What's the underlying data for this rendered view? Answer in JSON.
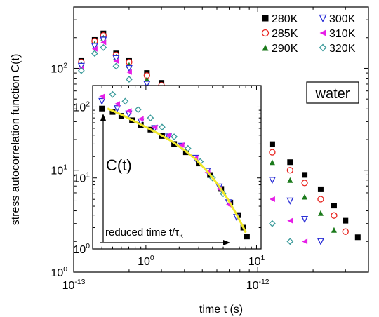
{
  "chart_data": [
    {
      "type": "scatter",
      "xlabel": "time t (s)",
      "ylabel": "stress autocorrelation function C(t)",
      "x_scale": "log",
      "y_scale": "log",
      "xlim": [
        1e-13,
        4e-12
      ],
      "ylim": [
        1,
        400
      ],
      "x_tick_labels": [
        {
          "value": 1e-13,
          "base": "10",
          "exp": "-13"
        },
        {
          "value": 1e-12,
          "base": "10",
          "exp": "-12"
        }
      ],
      "y_tick_labels": [
        {
          "value": 1,
          "base": "10",
          "exp": "0"
        },
        {
          "value": 10,
          "base": "10",
          "exp": "1"
        },
        {
          "value": 100,
          "base": "10",
          "exp": "2"
        }
      ],
      "annotation": "water",
      "legend_position": "top-right",
      "series": [
        {
          "name": "280K",
          "marker": "square-filled",
          "color": "#000000",
          "x": [
            1.1e-13,
            1.3e-13,
            1.45e-13,
            1.7e-13,
            2e-13,
            2.5e-13,
            3e-13,
            4e-13,
            5e-13,
            6e-13,
            7e-13,
            8e-13,
            1e-12,
            1.2e-12,
            1.5e-12,
            1.8e-12,
            2.2e-12,
            2.6e-12,
            3e-12,
            3.5e-12
          ],
          "y": [
            120,
            190,
            220,
            140,
            120,
            90,
            72,
            55,
            46,
            40,
            35,
            30,
            23,
            18,
            12,
            9,
            6.5,
            4.5,
            3.2,
            2.2
          ]
        },
        {
          "name": "285K",
          "marker": "circle-open",
          "color": "#e8241f",
          "x": [
            1.1e-13,
            1.3e-13,
            1.45e-13,
            1.7e-13,
            2e-13,
            2.5e-13,
            3e-13,
            4e-13,
            5e-13,
            6e-13,
            7e-13,
            8e-13,
            1e-12,
            1.2e-12,
            1.5e-12,
            1.8e-12,
            2.2e-12,
            2.6e-12,
            3e-12
          ],
          "y": [
            115,
            185,
            210,
            135,
            115,
            85,
            68,
            52,
            43,
            37,
            32,
            27,
            20,
            15,
            10,
            7.5,
            5.2,
            3.6,
            2.5
          ]
        },
        {
          "name": "290K",
          "marker": "triangle-up-filled",
          "color": "#1b7a1b",
          "x": [
            1.1e-13,
            1.3e-13,
            1.45e-13,
            1.7e-13,
            2e-13,
            2.5e-13,
            3e-13,
            4e-13,
            5e-13,
            6e-13,
            7e-13,
            8e-13,
            1e-12,
            1.2e-12,
            1.5e-12,
            1.8e-12,
            2.2e-12,
            2.6e-12
          ],
          "y": [
            110,
            175,
            200,
            130,
            108,
            78,
            60,
            46,
            37,
            31,
            26,
            22,
            16,
            12,
            8,
            5.5,
            3.8,
            2.6
          ]
        },
        {
          "name": "300K",
          "marker": "triangle-down-open",
          "color": "#2b2fd6",
          "x": [
            1.1e-13,
            1.3e-13,
            1.45e-13,
            1.7e-13,
            2e-13,
            2.5e-13,
            3e-13,
            4e-13,
            5e-13,
            6e-13,
            7e-13,
            8e-13,
            1e-12,
            1.2e-12,
            1.5e-12,
            1.8e-12,
            2.2e-12
          ],
          "y": [
            105,
            165,
            190,
            125,
            100,
            70,
            52,
            38,
            30,
            24,
            19,
            15.5,
            11,
            8,
            5,
            3.3,
            2
          ]
        },
        {
          "name": "310K",
          "marker": "triangle-left-filled",
          "color": "#e61ee6",
          "x": [
            1.1e-13,
            1.3e-13,
            1.45e-13,
            1.7e-13,
            2e-13,
            2.5e-13,
            3e-13,
            4e-13,
            5e-13,
            6e-13,
            7e-13,
            8e-13,
            1e-12,
            1.2e-12,
            1.5e-12,
            1.8e-12
          ],
          "y": [
            100,
            155,
            180,
            118,
            92,
            62,
            44,
            31,
            23,
            18,
            14,
            11,
            7.5,
            5.2,
            3.2,
            2
          ]
        },
        {
          "name": "320K",
          "marker": "diamond-open",
          "color": "#3a9a9a",
          "x": [
            1.1e-13,
            1.3e-13,
            1.45e-13,
            1.7e-13,
            2e-13,
            2.5e-13,
            3e-13,
            4e-13,
            5e-13,
            6e-13,
            7e-13,
            8e-13,
            1e-12,
            1.2e-12,
            1.5e-12
          ],
          "y": [
            95,
            140,
            160,
            105,
            78,
            50,
            34,
            22,
            15,
            11,
            8.5,
            6.5,
            4.3,
            3,
            2
          ]
        }
      ]
    },
    {
      "type": "scatter",
      "xlabel_text": "reduced time t/",
      "xlabel_tau": "τ",
      "xlabel_sub": "K",
      "ylabel": "C(t)",
      "x_scale": "log",
      "y_scale": "log",
      "xlim": [
        0.33,
        11
      ],
      "ylim": [
        1,
        200
      ],
      "x_tick_labels": [
        {
          "value": 1,
          "base": "10",
          "exp": "0"
        },
        {
          "value": 10,
          "base": "10",
          "exp": "1"
        }
      ],
      "y_tick_labels": [
        {
          "value": 1,
          "base": "10",
          "exp": "0"
        },
        {
          "value": 10,
          "base": "10",
          "exp": "1"
        },
        {
          "value": 100,
          "base": "10",
          "exp": "2"
        }
      ],
      "fit_curve": {
        "color": "#f0e82a",
        "x": [
          0.45,
          0.6,
          0.8,
          1,
          1.3,
          1.7,
          2.2,
          2.8,
          3.5,
          4.5,
          5.5,
          6.5,
          7.5,
          8
        ],
        "y": [
          95,
          78,
          62,
          52,
          42,
          33,
          25,
          18.5,
          13,
          8,
          5,
          3.2,
          2.1,
          1.7
        ]
      },
      "series": [
        {
          "name": "280K",
          "color": "#000000",
          "marker": "square-filled",
          "x": [
            0.4,
            0.5,
            0.6,
            0.75,
            0.9,
            1.1,
            1.4,
            1.8,
            2.3,
            3,
            3.8,
            4.8,
            5.8,
            6.8,
            7.6,
            8.2
          ],
          "y": [
            95,
            85,
            75,
            65,
            56,
            48,
            39,
            30,
            23,
            16,
            11,
            7,
            4.5,
            3,
            2,
            1.5
          ]
        },
        {
          "name": "300K",
          "color": "#2b2fd6",
          "marker": "triangle-down-open",
          "x": [
            0.4,
            0.55,
            0.7,
            0.9,
            1.2,
            1.6,
            2.1,
            2.8,
            3.6,
            4.6,
            5.6,
            6.6
          ],
          "y": [
            120,
            95,
            80,
            62,
            50,
            38,
            28,
            19,
            12.5,
            7.5,
            4.5,
            2.8
          ]
        },
        {
          "name": "310K",
          "color": "#e61ee6",
          "marker": "triangle-left-filled",
          "x": [
            0.4,
            0.55,
            0.7,
            0.9,
            1.2,
            1.6,
            2.1,
            2.8,
            3.6,
            4.6,
            5.6
          ],
          "y": [
            140,
            110,
            88,
            68,
            52,
            40,
            29,
            19,
            12,
            7,
            4.2
          ]
        },
        {
          "name": "320K",
          "color": "#3a9a9a",
          "marker": "diamond-open",
          "x": [
            0.5,
            0.65,
            0.85,
            1.1,
            1.4,
            1.8,
            2.4,
            3.1,
            4,
            5
          ],
          "y": [
            150,
            120,
            92,
            70,
            52,
            38,
            26,
            17,
            10,
            6
          ]
        }
      ]
    }
  ]
}
